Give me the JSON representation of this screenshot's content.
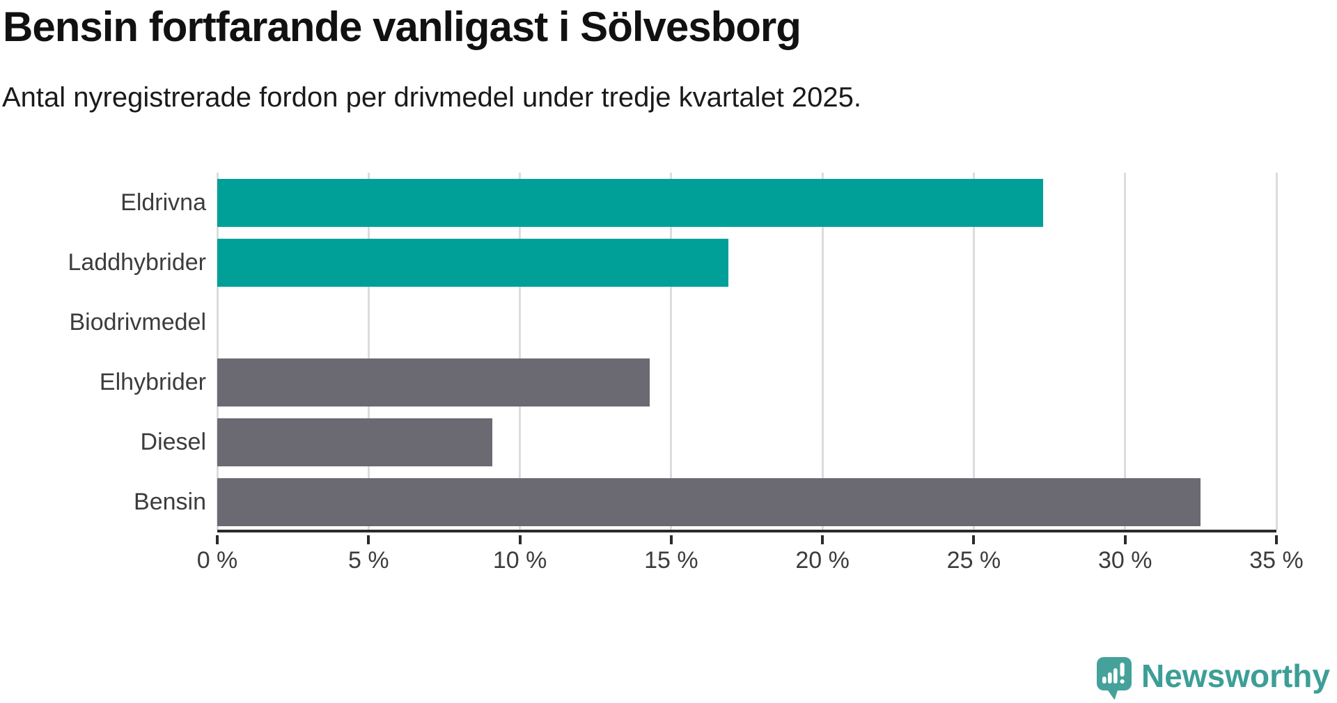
{
  "header": {
    "title": "Bensin fortfarande vanligast i Sölvesborg",
    "subtitle": "Antal nyregistrerade fordon per drivmedel under tredje kvartalet 2025."
  },
  "chart_data": {
    "type": "bar",
    "orientation": "horizontal",
    "title": "Bensin fortfarande vanligast i Sölvesborg",
    "subtitle": "Antal nyregistrerade fordon per drivmedel under tredje kvartalet 2025.",
    "categories": [
      "Eldrivna",
      "Laddhybrider",
      "Biodrivmedel",
      "Elhybrider",
      "Diesel",
      "Bensin"
    ],
    "values": [
      27.3,
      16.9,
      0,
      14.3,
      9.1,
      32.5
    ],
    "unit": "%",
    "bar_colors": [
      "#00a099",
      "#00a099",
      "#00a099",
      "#6b6a72",
      "#6b6a72",
      "#6b6a72"
    ],
    "xlim": [
      0,
      35
    ],
    "x_ticks": [
      0,
      5,
      10,
      15,
      20,
      25,
      30,
      35
    ],
    "x_tick_labels": [
      "0 %",
      "5 %",
      "10 %",
      "15 %",
      "20 %",
      "25 %",
      "30 %",
      "35 %"
    ],
    "grid": "vertical-only",
    "legend": "none"
  },
  "colors": {
    "highlight_teal": "#00a099",
    "neutral_gray": "#6b6a72",
    "gridline": "#dcdcdc",
    "axis": "#2b2b2b",
    "logo_teal": "#45a29b"
  },
  "footer": {
    "brand": "Newsworthy"
  }
}
